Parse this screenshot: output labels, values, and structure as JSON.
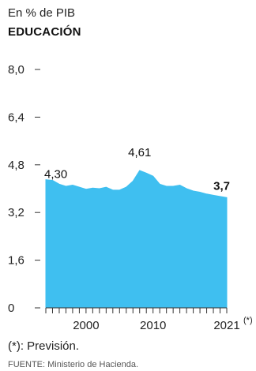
{
  "header": {
    "subtitle": "En % de PIB",
    "title": "EDUCACIÓN"
  },
  "note": "(*): Previsión.",
  "source": "FUENTE: Ministerio de Hacienda.",
  "colors": {
    "area_fill": "#3fbff0",
    "axis": "#333333"
  },
  "chart_data": {
    "type": "area",
    "title": "EDUCACIÓN",
    "subtitle": "En % de PIB",
    "ylabel": "",
    "xlabel": "",
    "ylim": [
      0,
      8.0
    ],
    "xlim": [
      1994,
      2021
    ],
    "yticks": [
      "0",
      "1,6",
      "3,2",
      "4,8",
      "6,4",
      "8,0"
    ],
    "ytick_values": [
      0,
      1.6,
      3.2,
      4.8,
      6.4,
      8.0
    ],
    "xticks": [
      "2000",
      "2010",
      "2021"
    ],
    "xtick_values": [
      2000,
      2010,
      2021
    ],
    "xtick_suffix": "(*)",
    "grid": false,
    "x": [
      1994,
      1995,
      1996,
      1997,
      1998,
      1999,
      2000,
      2001,
      2002,
      2003,
      2004,
      2005,
      2006,
      2007,
      2008,
      2009,
      2010,
      2011,
      2012,
      2013,
      2014,
      2015,
      2016,
      2017,
      2018,
      2019,
      2020,
      2021
    ],
    "values": [
      4.3,
      4.28,
      4.15,
      4.08,
      4.12,
      4.05,
      3.98,
      4.02,
      4.0,
      4.05,
      3.95,
      3.95,
      4.05,
      4.25,
      4.61,
      4.52,
      4.42,
      4.15,
      4.08,
      4.08,
      4.12,
      4.0,
      3.92,
      3.88,
      3.82,
      3.78,
      3.74,
      3.7
    ],
    "annotations": [
      {
        "x": 1994,
        "y": 4.3,
        "text": "4,30",
        "bold": false
      },
      {
        "x": 2008,
        "y": 4.61,
        "text": "4,61",
        "bold": false
      },
      {
        "x": 2021,
        "y": 3.7,
        "text": "3,7",
        "bold": true
      }
    ]
  }
}
